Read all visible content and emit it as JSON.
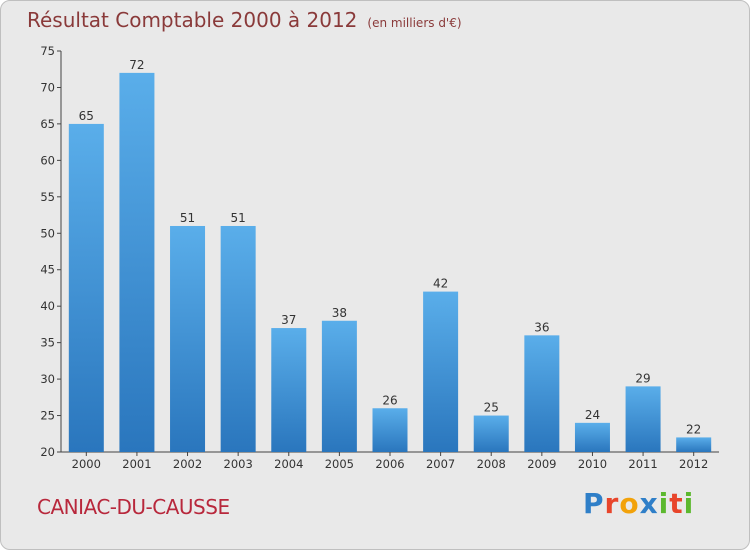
{
  "chart_data": {
    "type": "bar",
    "title": "Résultat Comptable 2000 à 2012",
    "subtitle": "(en milliers d'€)",
    "categories": [
      "2000",
      "2001",
      "2002",
      "2003",
      "2004",
      "2005",
      "2006",
      "2007",
      "2008",
      "2009",
      "2010",
      "2011",
      "2012"
    ],
    "values": [
      65,
      72,
      51,
      51,
      37,
      38,
      26,
      42,
      25,
      36,
      24,
      29,
      22
    ],
    "ylim": [
      20,
      75
    ],
    "yticks": [
      20,
      25,
      30,
      35,
      40,
      45,
      50,
      55,
      60,
      65,
      70,
      75
    ],
    "grid": false,
    "bar_color": "#3f8fd6"
  },
  "footer": {
    "commune": "CANIAC-DU-CAUSSE",
    "logo": {
      "letters": [
        {
          "char": "P",
          "color": "#2f7fc8"
        },
        {
          "char": "r",
          "color": "#e8452b"
        },
        {
          "char": "o",
          "color": "#f2a20a"
        },
        {
          "char": "x",
          "color": "#2f7fc8"
        },
        {
          "char": "i",
          "color": "#5cb82e"
        },
        {
          "char": "t",
          "color": "#e8452b"
        },
        {
          "char": "i",
          "color": "#5cb82e"
        }
      ]
    }
  }
}
